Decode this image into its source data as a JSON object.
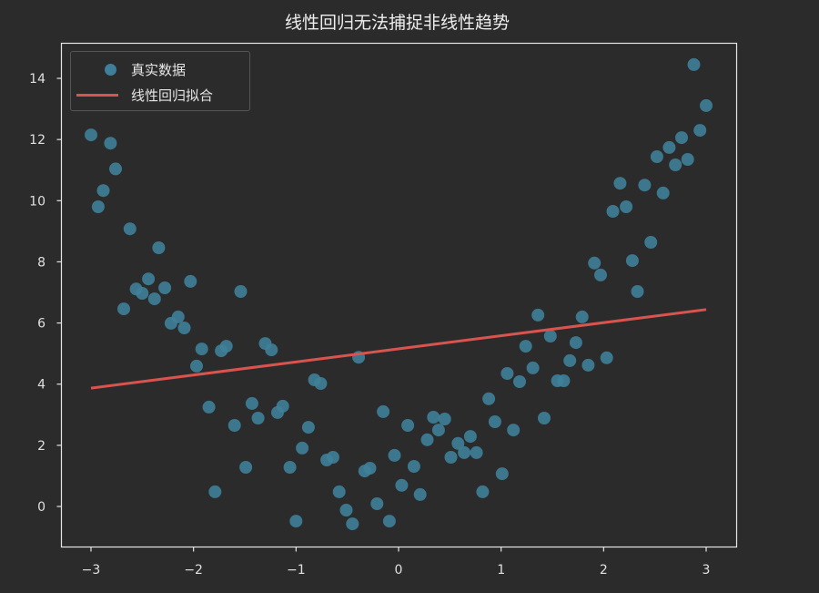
{
  "chart_data": {
    "type": "scatter",
    "title": "线性回归无法捕捉非线性趋势",
    "xlabel": "",
    "ylabel": "",
    "xlim": [
      -3.3,
      3.3
    ],
    "ylim": [
      -1.3,
      15.2
    ],
    "x_ticks": [
      -3,
      -2,
      -1,
      0,
      1,
      2,
      3
    ],
    "x_tick_labels": [
      "−3",
      "−2",
      "−1",
      "0",
      "1",
      "2",
      "3"
    ],
    "y_ticks": [
      0,
      2,
      4,
      6,
      8,
      10,
      12,
      14
    ],
    "y_tick_labels": [
      "0",
      "2",
      "4",
      "6",
      "8",
      "10",
      "12",
      "14"
    ],
    "grid": false,
    "legend_position": "upper left",
    "legend": [
      {
        "label": "真实数据",
        "type": "marker",
        "color": "#3f7f99"
      },
      {
        "label": "线性回归拟合",
        "type": "line",
        "color": "#d9534f"
      }
    ],
    "series": [
      {
        "name": "真实数据",
        "type": "scatter",
        "color": "#3f7f99",
        "points": [
          [
            -3.0,
            12.15
          ],
          [
            -2.93,
            9.8
          ],
          [
            -2.88,
            10.33
          ],
          [
            -2.81,
            11.88
          ],
          [
            -2.76,
            11.04
          ],
          [
            -2.62,
            9.08
          ],
          [
            -2.68,
            6.46
          ],
          [
            -2.56,
            7.11
          ],
          [
            -2.5,
            6.97
          ],
          [
            -2.44,
            7.44
          ],
          [
            -2.38,
            6.79
          ],
          [
            -2.34,
            8.46
          ],
          [
            -2.28,
            7.15
          ],
          [
            -2.22,
            5.99
          ],
          [
            -2.15,
            6.2
          ],
          [
            -2.09,
            5.84
          ],
          [
            -2.03,
            7.36
          ],
          [
            -1.97,
            4.59
          ],
          [
            -1.92,
            5.15
          ],
          [
            -1.85,
            3.25
          ],
          [
            -1.79,
            0.48
          ],
          [
            -1.73,
            5.09
          ],
          [
            -1.68,
            5.24
          ],
          [
            -1.6,
            2.65
          ],
          [
            -1.54,
            7.03
          ],
          [
            -1.49,
            1.28
          ],
          [
            -1.43,
            3.37
          ],
          [
            -1.37,
            2.89
          ],
          [
            -1.3,
            5.33
          ],
          [
            -1.24,
            5.12
          ],
          [
            -1.18,
            3.07
          ],
          [
            -1.13,
            3.28
          ],
          [
            -1.06,
            1.28
          ],
          [
            -1.0,
            -0.48
          ],
          [
            -0.94,
            1.91
          ],
          [
            -0.88,
            2.59
          ],
          [
            -0.82,
            4.14
          ],
          [
            -0.76,
            4.02
          ],
          [
            -0.7,
            1.52
          ],
          [
            -0.64,
            1.61
          ],
          [
            -0.58,
            0.48
          ],
          [
            -0.51,
            -0.12
          ],
          [
            -0.45,
            -0.57
          ],
          [
            -0.39,
            4.88
          ],
          [
            -0.33,
            1.16
          ],
          [
            -0.28,
            1.25
          ],
          [
            -0.21,
            0.09
          ],
          [
            -0.15,
            3.1
          ],
          [
            -0.09,
            -0.48
          ],
          [
            -0.04,
            1.67
          ],
          [
            0.03,
            0.69
          ],
          [
            0.09,
            2.65
          ],
          [
            0.15,
            1.31
          ],
          [
            0.21,
            0.39
          ],
          [
            0.28,
            2.18
          ],
          [
            0.34,
            2.92
          ],
          [
            0.39,
            2.5
          ],
          [
            0.45,
            2.86
          ],
          [
            0.51,
            1.61
          ],
          [
            0.58,
            2.06
          ],
          [
            0.64,
            1.76
          ],
          [
            0.7,
            2.29
          ],
          [
            0.76,
            1.76
          ],
          [
            0.82,
            0.48
          ],
          [
            0.88,
            3.52
          ],
          [
            0.94,
            2.77
          ],
          [
            1.01,
            1.07
          ],
          [
            1.06,
            4.35
          ],
          [
            1.12,
            2.5
          ],
          [
            1.18,
            4.08
          ],
          [
            1.24,
            5.24
          ],
          [
            1.31,
            4.53
          ],
          [
            1.36,
            6.26
          ],
          [
            1.42,
            2.89
          ],
          [
            1.48,
            5.57
          ],
          [
            1.55,
            4.11
          ],
          [
            1.61,
            4.11
          ],
          [
            1.67,
            4.77
          ],
          [
            1.73,
            5.36
          ],
          [
            1.79,
            6.2
          ],
          [
            1.85,
            4.62
          ],
          [
            1.91,
            7.96
          ],
          [
            1.97,
            7.57
          ],
          [
            2.03,
            4.86
          ],
          [
            2.09,
            9.65
          ],
          [
            2.16,
            10.57
          ],
          [
            2.22,
            9.8
          ],
          [
            2.28,
            8.04
          ],
          [
            2.33,
            7.03
          ],
          [
            2.4,
            10.51
          ],
          [
            2.46,
            8.64
          ],
          [
            2.52,
            11.44
          ],
          [
            2.58,
            10.25
          ],
          [
            2.64,
            11.74
          ],
          [
            2.7,
            11.17
          ],
          [
            2.76,
            12.06
          ],
          [
            2.82,
            11.35
          ],
          [
            2.88,
            14.45
          ],
          [
            2.94,
            12.3
          ],
          [
            3.0,
            13.11
          ]
        ]
      },
      {
        "name": "线性回归拟合",
        "type": "line",
        "color": "#d9534f",
        "x": [
          -3.0,
          3.0
        ],
        "y": [
          3.87,
          6.44
        ]
      }
    ]
  },
  "style": {
    "background": "#2b2b2b",
    "axes_color": "#e6e6e6",
    "point_color": "#3f7f99",
    "line_color": "#d9534f"
  }
}
